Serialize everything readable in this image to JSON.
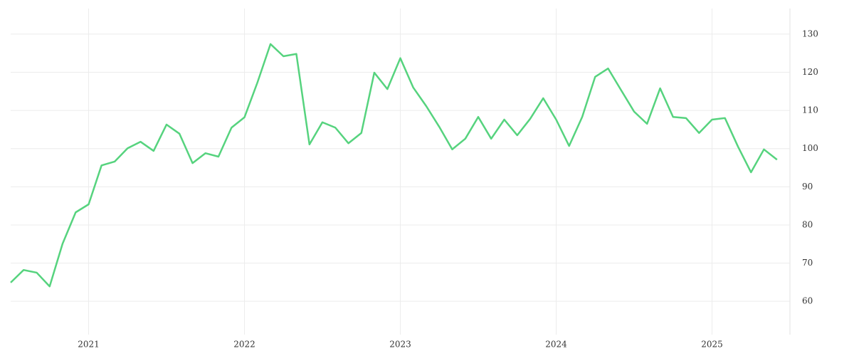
{
  "chart_data": {
    "type": "line",
    "x": [
      2020.5,
      2020.583,
      2020.667,
      2020.75,
      2020.833,
      2020.917,
      2021,
      2021.083,
      2021.167,
      2021.25,
      2021.333,
      2021.417,
      2021.5,
      2021.583,
      2021.667,
      2021.75,
      2021.833,
      2021.917,
      2022,
      2022.083,
      2022.167,
      2022.25,
      2022.333,
      2022.417,
      2022.5,
      2022.583,
      2022.667,
      2022.75,
      2022.833,
      2022.917,
      2023,
      2023.083,
      2023.167,
      2023.25,
      2023.333,
      2023.417,
      2023.5,
      2023.583,
      2023.667,
      2023.75,
      2023.833,
      2023.917,
      2024,
      2024.083,
      2024.167,
      2024.25,
      2024.333,
      2024.417,
      2024.5,
      2024.583,
      2024.667,
      2024.75,
      2024.833,
      2024.917,
      2025,
      2025.083,
      2025.167,
      2025.25,
      2025.333,
      2025.417
    ],
    "values": [
      64.9,
      68.2,
      67.5,
      63.9,
      75.1,
      83.3,
      85.4,
      95.6,
      96.6,
      100.1,
      101.8,
      99.4,
      106.3,
      103.9,
      96.2,
      98.8,
      97.9,
      105.5,
      108.2,
      117.3,
      127.4,
      124.2,
      124.8,
      101.1,
      106.9,
      105.5,
      101.4,
      104.1,
      119.9,
      115.6,
      123.7,
      116.0,
      111.1,
      105.7,
      99.8,
      102.6,
      108.3,
      102.6,
      107.6,
      103.5,
      107.8,
      113.2,
      107.6,
      100.7,
      108.3,
      118.8,
      121.0,
      115.3,
      109.7,
      106.5,
      115.8,
      108.3,
      108.0,
      104.1,
      107.6,
      108.0,
      100.5,
      93.8,
      99.8,
      97.1
    ],
    "color": "#56d37e",
    "xlim": [
      2020.5,
      2025.5
    ],
    "xticks": [
      2021,
      2022,
      2023,
      2024,
      2025
    ],
    "ylim": [
      53.5,
      136.7
    ],
    "yticks": [
      60,
      70,
      80,
      90,
      100,
      110,
      120,
      130
    ],
    "grid": true
  }
}
